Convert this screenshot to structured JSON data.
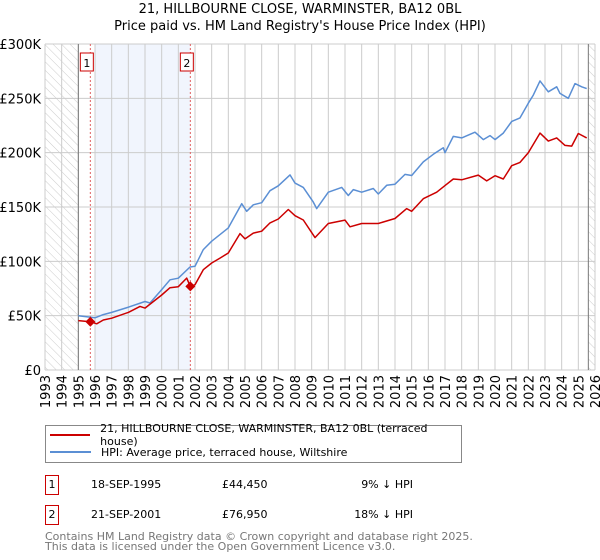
{
  "chart_data": {
    "type": "line",
    "title": "21, HILLBOURNE CLOSE, WARMINSTER, BA12 0BL",
    "subtitle": "Price paid vs. HM Land Registry's House Price Index (HPI)",
    "xlim": [
      1993,
      2026
    ],
    "ylim": [
      0,
      300000
    ],
    "x_ticks": [
      "1993",
      "1994",
      "1995",
      "1996",
      "1997",
      "1998",
      "1999",
      "2000",
      "2001",
      "2002",
      "2003",
      "2004",
      "2005",
      "2006",
      "2007",
      "2008",
      "2009",
      "2010",
      "2011",
      "2012",
      "2013",
      "2014",
      "2015",
      "2016",
      "2017",
      "2018",
      "2019",
      "2020",
      "2021",
      "2022",
      "2023",
      "2024",
      "2025",
      "2026"
    ],
    "y_ticks": [
      {
        "v": 0,
        "label": "£0"
      },
      {
        "v": 50000,
        "label": "£50K"
      },
      {
        "v": 100000,
        "label": "£100K"
      },
      {
        "v": 150000,
        "label": "£150K"
      },
      {
        "v": 200000,
        "label": "£200K"
      },
      {
        "v": 250000,
        "label": "£250K"
      },
      {
        "v": 300000,
        "label": "£300K"
      }
    ],
    "grid": true,
    "hatched_ranges": [
      [
        1993,
        1995
      ],
      [
        2025.6,
        2026
      ]
    ],
    "shaded_range": [
      1996,
      2001.72
    ],
    "series": [
      {
        "name": "21, HILLBOURNE CLOSE, WARMINSTER, BA12 0BL (terraced house)",
        "color": "#cc0000",
        "x": [
          1995.0,
          1995.72,
          1996.1,
          1996.5,
          1997,
          1998,
          1998.7,
          1999,
          2000,
          2000.5,
          2001,
          2001.5,
          2001.72,
          2002,
          2002.5,
          2003,
          2003.5,
          2004,
          2004.7,
          2005,
          2005.5,
          2006,
          2006.5,
          2007,
          2007.6,
          2008,
          2008.5,
          2009.2,
          2010,
          2011,
          2011.3,
          2012,
          2013,
          2014,
          2014.7,
          2015,
          2015.7,
          2016.5,
          2017,
          2017.5,
          2018,
          2019,
          2019.5,
          2020,
          2020.5,
          2021,
          2021.5,
          2022,
          2022.7,
          2023.2,
          2023.7,
          2024.2,
          2024.6,
          2025,
          2025.5
        ],
        "y": [
          45500,
          44450,
          42500,
          46000,
          47700,
          53000,
          58500,
          57000,
          69000,
          75700,
          76700,
          84600,
          76950,
          78500,
          92300,
          98500,
          103000,
          107700,
          125500,
          120600,
          126000,
          127700,
          135400,
          139000,
          147700,
          142000,
          138000,
          121800,
          134800,
          137900,
          131800,
          134800,
          134800,
          139400,
          148500,
          146000,
          157600,
          163600,
          169700,
          175800,
          175000,
          179400,
          174000,
          178800,
          175800,
          188000,
          191000,
          200000,
          218000,
          210600,
          213600,
          206700,
          206000,
          217600,
          213600
        ]
      },
      {
        "name": "HPI: Average price, terraced house, Wiltshire",
        "color": "#5b8fd4",
        "x": [
          1995.0,
          1996,
          1996.5,
          1997,
          1998,
          1999,
          1999.3,
          2000,
          2000.5,
          2001,
          2001.7,
          2002,
          2002.5,
          2003,
          2003.5,
          2004,
          2004.8,
          2005.1,
          2005.5,
          2006,
          2006.5,
          2007,
          2007.7,
          2008,
          2008.5,
          2009.1,
          2009.3,
          2010,
          2010.8,
          2011.2,
          2011.5,
          2012,
          2012.7,
          2013,
          2013.5,
          2014,
          2014.6,
          2015,
          2015.7,
          2016.3,
          2016.9,
          2017,
          2017.5,
          2018,
          2018.8,
          2019.3,
          2019.7,
          2020,
          2020.5,
          2021,
          2021.5,
          2022,
          2022.3,
          2022.7,
          2023.2,
          2023.7,
          2023.9,
          2024.4,
          2024.8,
          2025.2,
          2025.5
        ],
        "y": [
          50000,
          48000,
          51000,
          53000,
          57800,
          63000,
          61700,
          74000,
          83000,
          84500,
          94800,
          95400,
          110800,
          118500,
          124600,
          130800,
          153000,
          146000,
          152000,
          154000,
          165000,
          169500,
          179500,
          172000,
          168000,
          154500,
          148500,
          163600,
          168000,
          160600,
          166000,
          163600,
          167000,
          162000,
          170000,
          171000,
          180000,
          179000,
          191500,
          198500,
          204500,
          200000,
          215000,
          213600,
          218800,
          212000,
          215700,
          212000,
          218000,
          228800,
          232000,
          245500,
          253000,
          266000,
          256000,
          260600,
          254500,
          250000,
          263600,
          260600,
          259000
        ]
      }
    ],
    "sales": [
      {
        "id": "1",
        "x": 1995.72,
        "price": 44450,
        "date": "18-SEP-1995",
        "price_label": "£44,450",
        "hpi_label": "9% ↓ HPI"
      },
      {
        "id": "2",
        "x": 2001.72,
        "price": 76950,
        "date": "21-SEP-2001",
        "price_label": "£76,950",
        "hpi_label": "18% ↓ HPI"
      }
    ]
  },
  "header": {
    "title": "21, HILLBOURNE CLOSE, WARMINSTER, BA12 0BL",
    "subtitle": "Price paid vs. HM Land Registry's House Price Index (HPI)"
  },
  "legend": {
    "property": "21, HILLBOURNE CLOSE, WARMINSTER, BA12 0BL (terraced house)",
    "hpi": "HPI: Average price, terraced house, Wiltshire"
  },
  "footer": {
    "line1": "Contains HM Land Registry data © Crown copyright and database right 2025.",
    "line2": "This data is licensed under the Open Government Licence v3.0."
  }
}
